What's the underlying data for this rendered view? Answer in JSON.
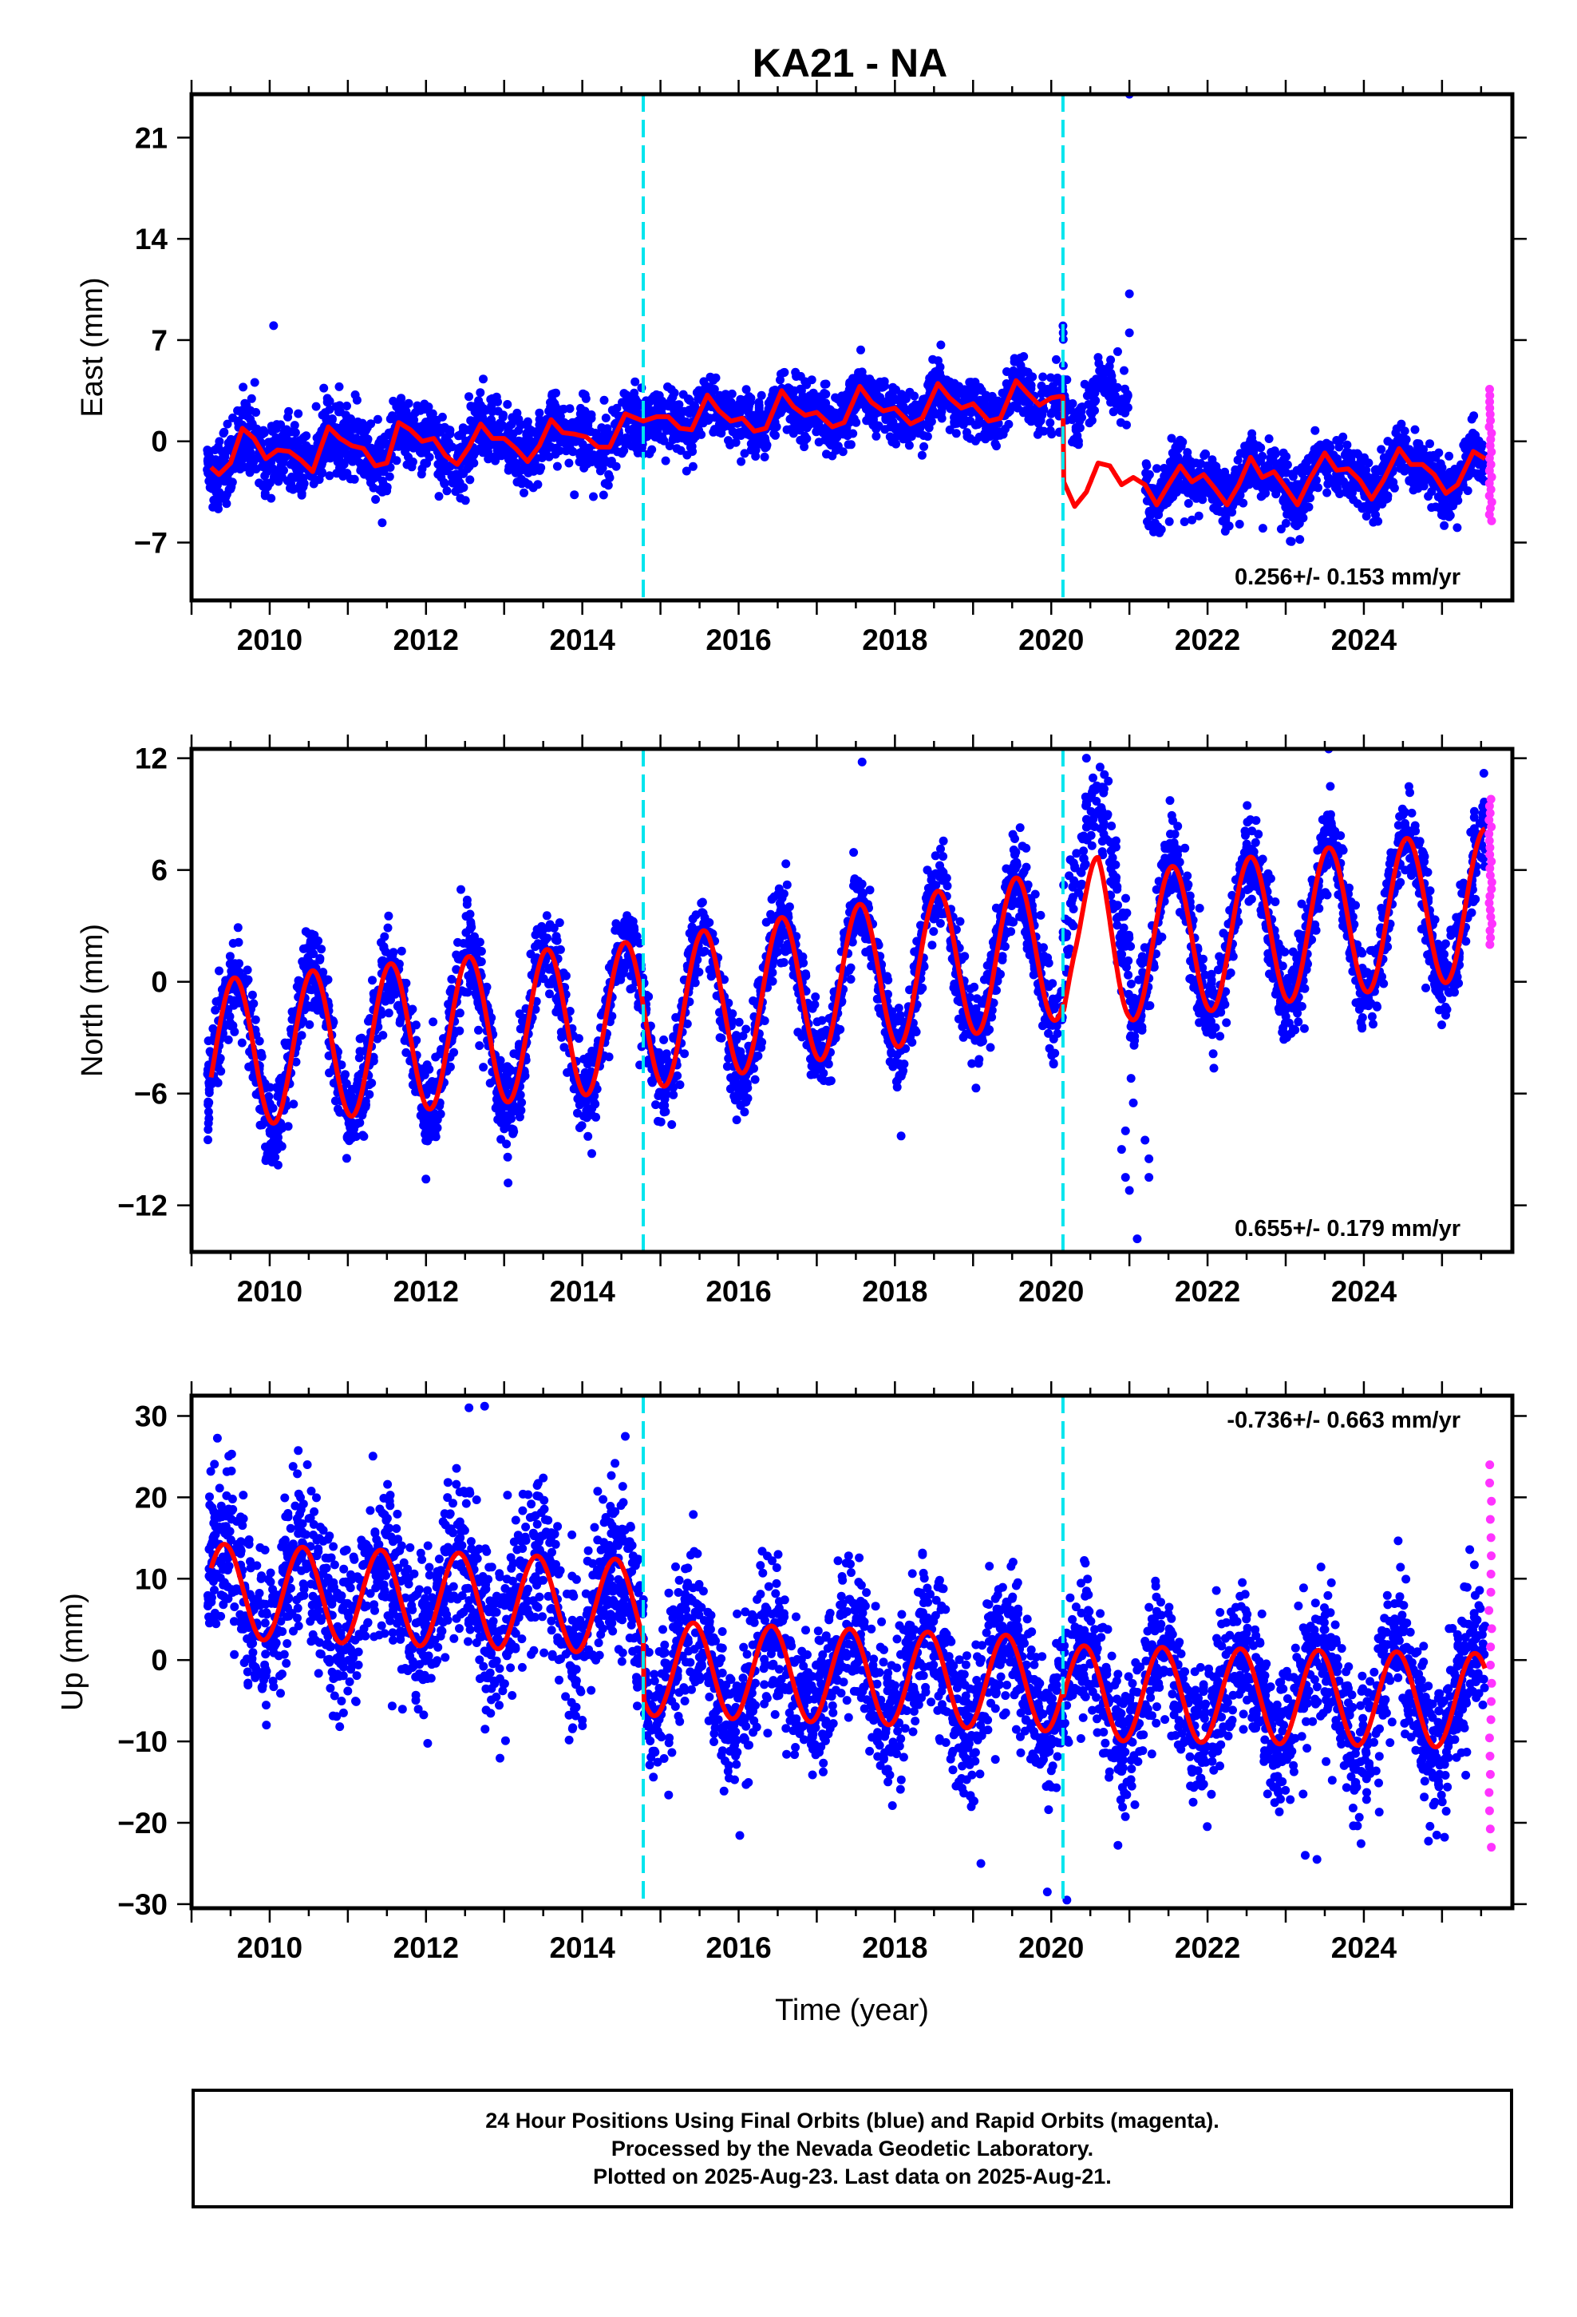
{
  "title": "KA21 - NA",
  "chart_data": [
    {
      "type": "scatter",
      "ylabel": "East (mm)",
      "xlabel": "",
      "xlim": [
        2009.0,
        2025.9
      ],
      "ylim": [
        -11,
        24
      ],
      "yticks": [
        -7,
        0,
        7,
        14,
        21
      ],
      "xticks": [
        2010,
        2012,
        2014,
        2016,
        2018,
        2020,
        2022,
        2024
      ],
      "rate_text": "0.256+/- 0.153 mm/yr",
      "rate_position": "bottom-right",
      "steps": [
        2014.78,
        2020.15
      ],
      "model": [
        [
          2009.25,
          -1.8
        ],
        [
          2009.35,
          -2.3
        ],
        [
          2009.5,
          -1.5
        ],
        [
          2009.65,
          0.9
        ],
        [
          2009.8,
          0.2
        ],
        [
          2009.95,
          -1.2
        ],
        [
          2010.1,
          -0.6
        ],
        [
          2010.25,
          -0.7
        ],
        [
          2010.4,
          -1.3
        ],
        [
          2010.55,
          -2.1
        ],
        [
          2010.65,
          -0.5
        ],
        [
          2010.75,
          1.0
        ],
        [
          2010.9,
          0.2
        ],
        [
          2011.05,
          -0.3
        ],
        [
          2011.2,
          -0.5
        ],
        [
          2011.35,
          -1.7
        ],
        [
          2011.5,
          -1.5
        ],
        [
          2011.65,
          1.3
        ],
        [
          2011.8,
          0.8
        ],
        [
          2011.95,
          0.0
        ],
        [
          2012.1,
          0.2
        ],
        [
          2012.25,
          -1.0
        ],
        [
          2012.4,
          -1.6
        ],
        [
          2012.55,
          -0.4
        ],
        [
          2012.7,
          1.2
        ],
        [
          2012.85,
          0.2
        ],
        [
          2013.0,
          0.2
        ],
        [
          2013.15,
          -0.5
        ],
        [
          2013.3,
          -1.4
        ],
        [
          2013.45,
          -0.3
        ],
        [
          2013.6,
          1.5
        ],
        [
          2013.75,
          0.6
        ],
        [
          2013.9,
          0.5
        ],
        [
          2014.05,
          0.3
        ],
        [
          2014.2,
          -0.4
        ],
        [
          2014.35,
          -0.4
        ],
        [
          2014.55,
          1.9
        ],
        [
          2014.78,
          1.4
        ],
        [
          2014.95,
          1.7
        ],
        [
          2015.1,
          1.7
        ],
        [
          2015.25,
          0.9
        ],
        [
          2015.4,
          0.8
        ],
        [
          2015.6,
          3.2
        ],
        [
          2015.75,
          2.1
        ],
        [
          2015.9,
          1.4
        ],
        [
          2016.05,
          1.6
        ],
        [
          2016.2,
          0.7
        ],
        [
          2016.35,
          0.9
        ],
        [
          2016.55,
          3.5
        ],
        [
          2016.7,
          2.4
        ],
        [
          2016.85,
          1.8
        ],
        [
          2017.0,
          2.0
        ],
        [
          2017.2,
          1.0
        ],
        [
          2017.35,
          1.3
        ],
        [
          2017.55,
          3.8
        ],
        [
          2017.7,
          2.7
        ],
        [
          2017.85,
          2.1
        ],
        [
          2018.0,
          2.3
        ],
        [
          2018.2,
          1.2
        ],
        [
          2018.35,
          1.6
        ],
        [
          2018.55,
          4.0
        ],
        [
          2018.7,
          3.0
        ],
        [
          2018.85,
          2.3
        ],
        [
          2019.0,
          2.6
        ],
        [
          2019.2,
          1.4
        ],
        [
          2019.35,
          1.6
        ],
        [
          2019.55,
          4.2
        ],
        [
          2019.7,
          3.3
        ],
        [
          2019.85,
          2.5
        ],
        [
          2020.0,
          3.0
        ],
        [
          2020.1,
          3.1
        ],
        [
          2020.15,
          3.1
        ],
        [
          2020.16,
          -2.8
        ],
        [
          2020.3,
          -4.5
        ],
        [
          2020.45,
          -3.5
        ],
        [
          2020.6,
          -1.5
        ],
        [
          2020.75,
          -1.7
        ],
        [
          2020.9,
          -3.0
        ],
        [
          2021.05,
          -2.5
        ],
        [
          2021.2,
          -3.0
        ],
        [
          2021.35,
          -4.4
        ],
        [
          2021.5,
          -3.0
        ],
        [
          2021.65,
          -1.7
        ],
        [
          2021.8,
          -2.8
        ],
        [
          2021.95,
          -2.3
        ],
        [
          2022.1,
          -3.3
        ],
        [
          2022.25,
          -4.4
        ],
        [
          2022.4,
          -3.0
        ],
        [
          2022.55,
          -1.1
        ],
        [
          2022.7,
          -2.5
        ],
        [
          2022.85,
          -2.1
        ],
        [
          2023.0,
          -3.2
        ],
        [
          2023.15,
          -4.4
        ],
        [
          2023.3,
          -2.7
        ],
        [
          2023.5,
          -0.8
        ],
        [
          2023.65,
          -2.0
        ],
        [
          2023.8,
          -1.9
        ],
        [
          2023.95,
          -2.7
        ],
        [
          2024.1,
          -4.0
        ],
        [
          2024.25,
          -2.7
        ],
        [
          2024.45,
          -0.5
        ],
        [
          2024.6,
          -1.6
        ],
        [
          2024.75,
          -1.6
        ],
        [
          2024.9,
          -2.3
        ],
        [
          2025.05,
          -3.6
        ],
        [
          2025.2,
          -3.0
        ],
        [
          2025.4,
          -0.7
        ],
        [
          2025.55,
          -1.2
        ]
      ],
      "noise": [
        {
          "x0": 2009.2,
          "x1": 2014.78,
          "sd": 1.2,
          "n": 1400
        },
        {
          "x0": 2014.78,
          "x1": 2020.15,
          "sd": 1.0,
          "n": 1300
        },
        {
          "x0": 2020.15,
          "x1": 2021.0,
          "sd": 0.9,
          "n": 120,
          "offset": 5.5
        },
        {
          "x0": 2021.2,
          "x1": 2025.55,
          "sd": 1.0,
          "n": 1150
        }
      ],
      "outliers": [
        [
          2010.05,
          8.0
        ],
        [
          2021.0,
          24.0
        ],
        [
          2021.0,
          10.2
        ],
        [
          2021.0,
          7.5
        ],
        [
          2020.6,
          5.8
        ],
        [
          2020.85,
          6.2
        ]
      ],
      "rapid": {
        "x": 2025.62,
        "ymin": -5.5,
        "ymax": 3.6,
        "n": 22
      }
    },
    {
      "type": "scatter",
      "ylabel": "North (mm)",
      "xlabel": "",
      "xlim": [
        2009.0,
        2025.9
      ],
      "ylim": [
        -14.5,
        12.5
      ],
      "yticks": [
        -12,
        -6,
        0,
        6,
        12
      ],
      "xticks": [
        2010,
        2012,
        2014,
        2016,
        2018,
        2020,
        2022,
        2024
      ],
      "rate_text": "0.655+/- 0.179 mm/yr",
      "rate_position": "bottom-right",
      "steps": [
        2014.78,
        2020.15
      ],
      "model": {
        "trend": [
          [
            2009.25,
            -3.9
          ],
          [
            2014.78,
            -1.8
          ],
          [
            2020.15,
            2.0
          ],
          [
            2020.16,
            1.5
          ],
          [
            2025.55,
            4.2
          ]
        ],
        "amp": 4.0,
        "phase": 2009.55,
        "amp_mod": [
          [
            2020.15,
            1.0
          ],
          [
            2020.3,
            0.7
          ],
          [
            2020.6,
            1.3
          ],
          [
            2021.0,
            1.0
          ]
        ]
      },
      "noise": [
        {
          "x0": 2009.2,
          "x1": 2014.78,
          "sd": 1.2,
          "n": 1400
        },
        {
          "x0": 2014.78,
          "x1": 2020.15,
          "sd": 1.1,
          "n": 1300
        },
        {
          "x0": 2020.15,
          "x1": 2021.0,
          "sd": 1.3,
          "n": 150,
          "offset": 3.5
        },
        {
          "x0": 2021.0,
          "x1": 2025.55,
          "sd": 1.1,
          "n": 1150
        }
      ],
      "outliers": [
        [
          2020.9,
          -9.0
        ],
        [
          2020.95,
          -10.5
        ],
        [
          2021.0,
          -11.2
        ],
        [
          2020.95,
          -8.0
        ],
        [
          2021.05,
          -6.5
        ],
        [
          2021.1,
          -13.8
        ],
        [
          2021.2,
          -8.5
        ],
        [
          2021.25,
          -9.5
        ],
        [
          2021.25,
          -10.5
        ],
        [
          2017.58,
          11.8
        ],
        [
          2023.55,
          12.5
        ],
        [
          2020.45,
          12.0
        ],
        [
          2009.95,
          -9.6
        ],
        [
          2013.05,
          -10.8
        ]
      ],
      "rapid": {
        "x": 2025.62,
        "ymin": 2.0,
        "ymax": 9.8,
        "n": 22
      }
    },
    {
      "type": "scatter",
      "ylabel": "Up (mm)",
      "xlabel": "Time (year)",
      "xlim": [
        2009.0,
        2025.9
      ],
      "ylim": [
        -30.5,
        32.5
      ],
      "yticks": [
        -30,
        -20,
        -10,
        0,
        10,
        20,
        30
      ],
      "xticks": [
        2010,
        2012,
        2014,
        2016,
        2018,
        2020,
        2022,
        2024
      ],
      "rate_text": "-0.736+/- 0.663 mm/yr",
      "rate_position": "top-right",
      "steps": [
        2014.78,
        2020.15
      ],
      "model": {
        "trend": [
          [
            2009.25,
            8.5
          ],
          [
            2014.78,
            6.5
          ],
          [
            2014.79,
            -1.0
          ],
          [
            2020.15,
            -3.0
          ],
          [
            2020.16,
            -4.0
          ],
          [
            2025.55,
            -5.0
          ]
        ],
        "amp": 5.8,
        "phase": 2009.42,
        "amp_mod": []
      },
      "noise": [
        {
          "x0": 2009.2,
          "x1": 2014.78,
          "sd": 5.0,
          "n": 1400
        },
        {
          "x0": 2014.78,
          "x1": 2020.15,
          "sd": 4.5,
          "n": 1300
        },
        {
          "x0": 2020.15,
          "x1": 2025.55,
          "sd": 4.3,
          "n": 1300
        }
      ],
      "outliers": [
        [
          2012.55,
          31.0
        ],
        [
          2012.75,
          31.2
        ],
        [
          2014.55,
          27.5
        ],
        [
          2019.1,
          -25.0
        ],
        [
          2019.95,
          -28.5
        ],
        [
          2020.2,
          -29.5
        ],
        [
          2023.25,
          -24.0
        ],
        [
          2023.4,
          -24.5
        ]
      ],
      "rapid": {
        "x": 2025.62,
        "ymin": -23.0,
        "ymax": 24.0,
        "n": 22
      }
    }
  ],
  "caption": {
    "line1": "24 Hour Positions Using Final Orbits (blue) and Rapid Orbits (magenta).",
    "line2": "Processed by the Nevada Geodetic Laboratory.",
    "line3": "Plotted on 2025-Aug-23. Last data on 2025-Aug-21."
  },
  "colors": {
    "final_orbits": "#0000ff",
    "rapid_orbits": "#ff33ff",
    "model": "#ff0000",
    "steps": "#00e5ee",
    "axes": "#000000"
  }
}
